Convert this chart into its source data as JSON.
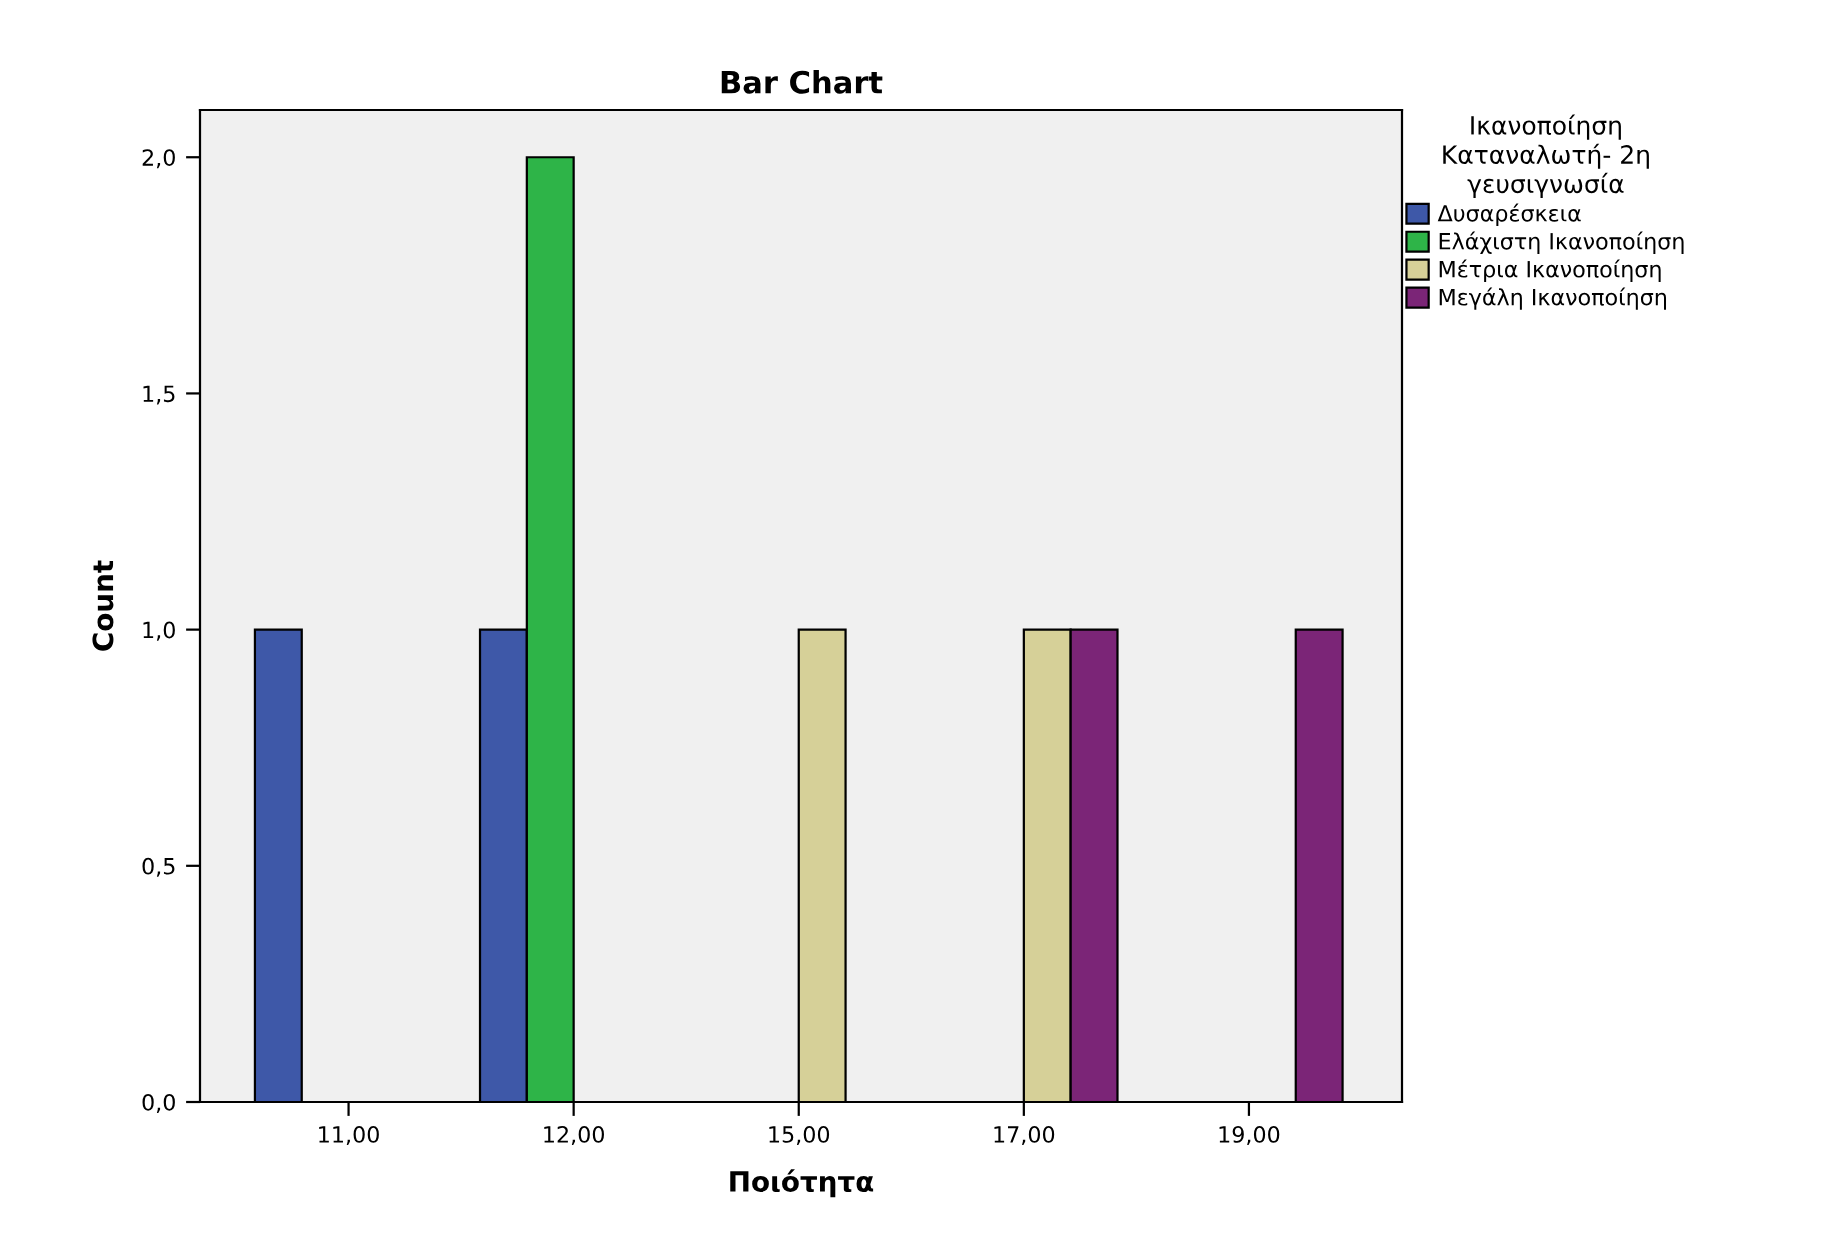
{
  "chart_data": {
    "type": "bar",
    "title": "Bar Chart",
    "xlabel": "Ποιότητα",
    "ylabel": "Count",
    "legend_title": "Ικανοποίηση\nΚαταναλωτή- 2η\nγευσιγνωσία",
    "categories": [
      "11,00",
      "12,00",
      "15,00",
      "17,00",
      "19,00"
    ],
    "series": [
      {
        "name": "Δυσαρέσκεια",
        "color": "#3e58a8",
        "values": [
          1.0,
          1.0,
          null,
          null,
          null
        ]
      },
      {
        "name": "Ελάχιστη Ικανοποίηση",
        "color": "#2eb448",
        "values": [
          null,
          2.0,
          null,
          null,
          null
        ]
      },
      {
        "name": "Μέτρια Ικανοποίηση",
        "color": "#d6d098",
        "values": [
          null,
          null,
          1.0,
          1.0,
          null
        ]
      },
      {
        "name": "Μεγάλη Ικανοποίηση",
        "color": "#7b2577",
        "values": [
          null,
          null,
          null,
          1.0,
          1.0
        ]
      }
    ],
    "ylim": [
      0,
      2.1
    ],
    "yticks": [
      {
        "value": 0,
        "label": "0,0"
      },
      {
        "value": 0.5,
        "label": "0,5"
      },
      {
        "value": 1.0,
        "label": "1,0"
      },
      {
        "value": 1.5,
        "label": "1,5"
      },
      {
        "value": 2.0,
        "label": "2,0"
      }
    ],
    "grid": false,
    "legend": "right"
  }
}
